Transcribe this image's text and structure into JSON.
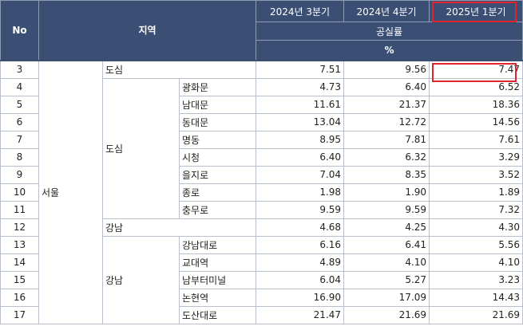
{
  "header": {
    "no": "No",
    "region": "지역",
    "quarters": [
      "2024년 3분기",
      "2024년 4분기",
      "2025년 1분기"
    ],
    "metric": "공실률",
    "unit": "%"
  },
  "city": "서울",
  "districts": {
    "dosim": "도심",
    "gangnam": "강남"
  },
  "rows": [
    {
      "no": "3",
      "name": "도심",
      "q3": "7.51",
      "q4": "9.56",
      "q1": "7.47"
    },
    {
      "no": "4",
      "name": "광화문",
      "q3": "4.73",
      "q4": "6.40",
      "q1": "6.52"
    },
    {
      "no": "5",
      "name": "남대문",
      "q3": "11.61",
      "q4": "21.37",
      "q1": "18.36"
    },
    {
      "no": "6",
      "name": "동대문",
      "q3": "13.04",
      "q4": "12.72",
      "q1": "14.56"
    },
    {
      "no": "7",
      "name": "명동",
      "q3": "8.95",
      "q4": "7.81",
      "q1": "7.61"
    },
    {
      "no": "8",
      "name": "시청",
      "q3": "6.40",
      "q4": "6.32",
      "q1": "3.29"
    },
    {
      "no": "9",
      "name": "을지로",
      "q3": "7.04",
      "q4": "8.35",
      "q1": "3.52"
    },
    {
      "no": "10",
      "name": "종로",
      "q3": "1.98",
      "q4": "1.90",
      "q1": "1.89"
    },
    {
      "no": "11",
      "name": "충무로",
      "q3": "9.59",
      "q4": "9.59",
      "q1": "7.32"
    },
    {
      "no": "12",
      "name": "강남",
      "q3": "4.68",
      "q4": "4.25",
      "q1": "4.30"
    },
    {
      "no": "13",
      "name": "강남대로",
      "q3": "6.16",
      "q4": "6.41",
      "q1": "5.56"
    },
    {
      "no": "14",
      "name": "교대역",
      "q3": "4.89",
      "q4": "4.10",
      "q1": "4.10"
    },
    {
      "no": "15",
      "name": "남부터미널",
      "q3": "6.04",
      "q4": "5.27",
      "q1": "3.23"
    },
    {
      "no": "16",
      "name": "논현역",
      "q3": "16.90",
      "q4": "17.09",
      "q1": "14.43"
    },
    {
      "no": "17",
      "name": "도산대로",
      "q3": "21.47",
      "q4": "21.69",
      "q1": "21.69"
    }
  ],
  "highlight_color": "#e0242c"
}
